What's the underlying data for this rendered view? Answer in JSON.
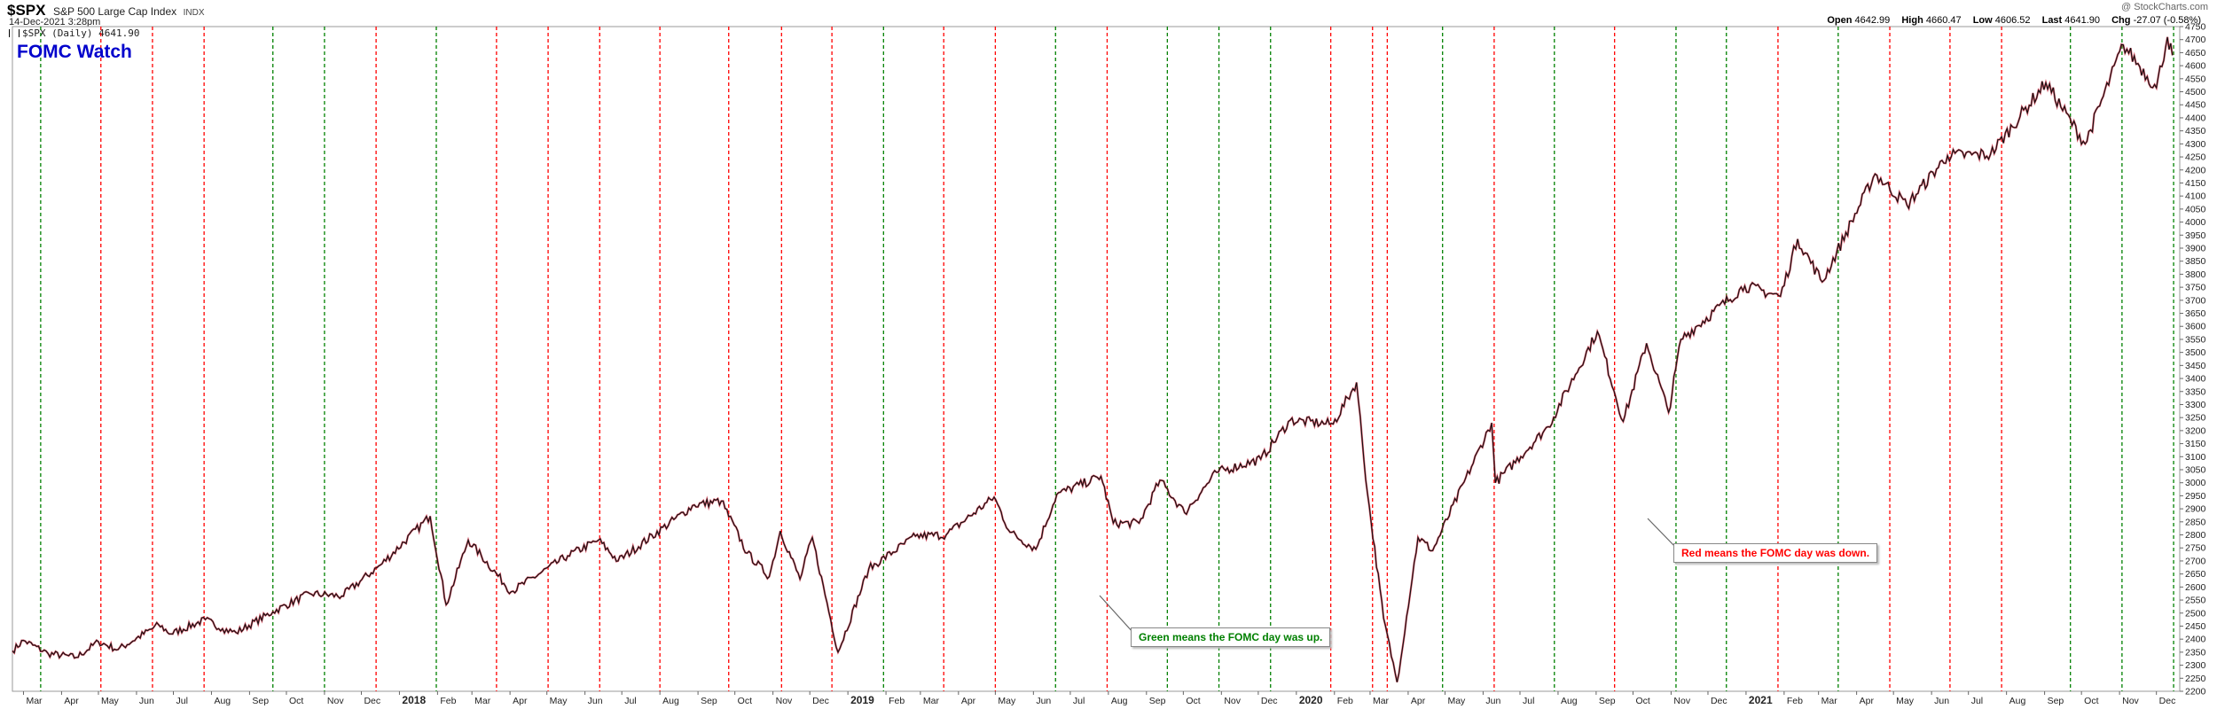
{
  "header": {
    "symbol": "$SPX",
    "name": "S&P 500 Large Cap Index",
    "exchange": "INDX",
    "date": "14-Dec-2021 3:28pm",
    "series_label": "$SPX (Daily) 4641.90",
    "watermark": "@ StockCharts.com",
    "ohlc": {
      "open_label": "Open",
      "open": "4642.99",
      "high_label": "High",
      "high": "4660.47",
      "low_label": "Low",
      "low": "4606.52",
      "last_label": "Last",
      "last": "4641.90",
      "chg_label": "Chg",
      "chg": "-27.07 (-0.58%)"
    }
  },
  "chart_title": "FOMC Watch",
  "annotations": {
    "green_note": "Green means the FOMC day was up.",
    "red_note": "Red means the FOMC day was down."
  },
  "colors": {
    "up": "#008000",
    "down": "#ff0000",
    "title": "#0000cc",
    "price": "#111111"
  },
  "chart_data": {
    "type": "line",
    "ylim": [
      2200,
      4750
    ],
    "y_ticks": [
      2200,
      2250,
      2300,
      2350,
      2400,
      2450,
      2500,
      2550,
      2600,
      2650,
      2700,
      2750,
      2800,
      2850,
      2900,
      2950,
      3000,
      3050,
      3100,
      3150,
      3200,
      3250,
      3300,
      3350,
      3400,
      3450,
      3500,
      3550,
      3600,
      3650,
      3700,
      3750,
      3800,
      3850,
      3900,
      3950,
      4000,
      4050,
      4100,
      4150,
      4200,
      4250,
      4300,
      4350,
      4400,
      4450,
      4500,
      4550,
      4600,
      4650,
      4700,
      4750
    ],
    "xlim": [
      "2017-02-20",
      "2021-12-20"
    ],
    "x_ticks": [
      {
        "label": "Mar",
        "date": "2017-03-01",
        "bold": false
      },
      {
        "label": "Apr",
        "date": "2017-04-01",
        "bold": false
      },
      {
        "label": "May",
        "date": "2017-05-01",
        "bold": false
      },
      {
        "label": "Jun",
        "date": "2017-06-01",
        "bold": false
      },
      {
        "label": "Jul",
        "date": "2017-07-01",
        "bold": false
      },
      {
        "label": "Aug",
        "date": "2017-08-01",
        "bold": false
      },
      {
        "label": "Sep",
        "date": "2017-09-01",
        "bold": false
      },
      {
        "label": "Oct",
        "date": "2017-10-01",
        "bold": false
      },
      {
        "label": "Nov",
        "date": "2017-11-01",
        "bold": false
      },
      {
        "label": "Dec",
        "date": "2017-12-01",
        "bold": false
      },
      {
        "label": "2018",
        "date": "2018-01-01",
        "bold": true
      },
      {
        "label": "Feb",
        "date": "2018-02-01",
        "bold": false
      },
      {
        "label": "Mar",
        "date": "2018-03-01",
        "bold": false
      },
      {
        "label": "Apr",
        "date": "2018-04-01",
        "bold": false
      },
      {
        "label": "May",
        "date": "2018-05-01",
        "bold": false
      },
      {
        "label": "Jun",
        "date": "2018-06-01",
        "bold": false
      },
      {
        "label": "Jul",
        "date": "2018-07-01",
        "bold": false
      },
      {
        "label": "Aug",
        "date": "2018-08-01",
        "bold": false
      },
      {
        "label": "Sep",
        "date": "2018-09-01",
        "bold": false
      },
      {
        "label": "Oct",
        "date": "2018-10-01",
        "bold": false
      },
      {
        "label": "Nov",
        "date": "2018-11-01",
        "bold": false
      },
      {
        "label": "Dec",
        "date": "2018-12-01",
        "bold": false
      },
      {
        "label": "2019",
        "date": "2019-01-01",
        "bold": true
      },
      {
        "label": "Feb",
        "date": "2019-02-01",
        "bold": false
      },
      {
        "label": "Mar",
        "date": "2019-03-01",
        "bold": false
      },
      {
        "label": "Apr",
        "date": "2019-04-01",
        "bold": false
      },
      {
        "label": "May",
        "date": "2019-05-01",
        "bold": false
      },
      {
        "label": "Jun",
        "date": "2019-06-01",
        "bold": false
      },
      {
        "label": "Jul",
        "date": "2019-07-01",
        "bold": false
      },
      {
        "label": "Aug",
        "date": "2019-08-01",
        "bold": false
      },
      {
        "label": "Sep",
        "date": "2019-09-01",
        "bold": false
      },
      {
        "label": "Oct",
        "date": "2019-10-01",
        "bold": false
      },
      {
        "label": "Nov",
        "date": "2019-11-01",
        "bold": false
      },
      {
        "label": "Dec",
        "date": "2019-12-01",
        "bold": false
      },
      {
        "label": "2020",
        "date": "2020-01-01",
        "bold": true
      },
      {
        "label": "Feb",
        "date": "2020-02-01",
        "bold": false
      },
      {
        "label": "Mar",
        "date": "2020-03-01",
        "bold": false
      },
      {
        "label": "Apr",
        "date": "2020-04-01",
        "bold": false
      },
      {
        "label": "May",
        "date": "2020-05-01",
        "bold": false
      },
      {
        "label": "Jun",
        "date": "2020-06-01",
        "bold": false
      },
      {
        "label": "Jul",
        "date": "2020-07-01",
        "bold": false
      },
      {
        "label": "Aug",
        "date": "2020-08-01",
        "bold": false
      },
      {
        "label": "Sep",
        "date": "2020-09-01",
        "bold": false
      },
      {
        "label": "Oct",
        "date": "2020-10-01",
        "bold": false
      },
      {
        "label": "Nov",
        "date": "2020-11-01",
        "bold": false
      },
      {
        "label": "Dec",
        "date": "2020-12-01",
        "bold": false
      },
      {
        "label": "2021",
        "date": "2021-01-01",
        "bold": true
      },
      {
        "label": "Feb",
        "date": "2021-02-01",
        "bold": false
      },
      {
        "label": "Mar",
        "date": "2021-03-01",
        "bold": false
      },
      {
        "label": "Apr",
        "date": "2021-04-01",
        "bold": false
      },
      {
        "label": "May",
        "date": "2021-05-01",
        "bold": false
      },
      {
        "label": "Jun",
        "date": "2021-06-01",
        "bold": false
      },
      {
        "label": "Jul",
        "date": "2021-07-01",
        "bold": false
      },
      {
        "label": "Aug",
        "date": "2021-08-01",
        "bold": false
      },
      {
        "label": "Sep",
        "date": "2021-09-01",
        "bold": false
      },
      {
        "label": "Oct",
        "date": "2021-10-01",
        "bold": false
      },
      {
        "label": "Nov",
        "date": "2021-11-01",
        "bold": false
      },
      {
        "label": "Dec",
        "date": "2021-12-01",
        "bold": false
      }
    ],
    "fomc_days": [
      {
        "date": "2017-03-15",
        "result": "up"
      },
      {
        "date": "2017-05-03",
        "result": "down"
      },
      {
        "date": "2017-06-14",
        "result": "down"
      },
      {
        "date": "2017-07-26",
        "result": "down"
      },
      {
        "date": "2017-09-20",
        "result": "up"
      },
      {
        "date": "2017-11-01",
        "result": "up"
      },
      {
        "date": "2017-12-13",
        "result": "down"
      },
      {
        "date": "2018-01-31",
        "result": "up"
      },
      {
        "date": "2018-03-21",
        "result": "down"
      },
      {
        "date": "2018-05-02",
        "result": "down"
      },
      {
        "date": "2018-06-13",
        "result": "down"
      },
      {
        "date": "2018-08-01",
        "result": "down"
      },
      {
        "date": "2018-09-26",
        "result": "down"
      },
      {
        "date": "2018-11-08",
        "result": "down"
      },
      {
        "date": "2018-12-19",
        "result": "down"
      },
      {
        "date": "2019-01-30",
        "result": "up"
      },
      {
        "date": "2019-03-20",
        "result": "down"
      },
      {
        "date": "2019-05-01",
        "result": "down"
      },
      {
        "date": "2019-06-19",
        "result": "up"
      },
      {
        "date": "2019-07-31",
        "result": "down"
      },
      {
        "date": "2019-09-18",
        "result": "up"
      },
      {
        "date": "2019-10-30",
        "result": "up"
      },
      {
        "date": "2019-12-11",
        "result": "up"
      },
      {
        "date": "2020-01-29",
        "result": "down"
      },
      {
        "date": "2020-03-03",
        "result": "down"
      },
      {
        "date": "2020-03-15",
        "result": "down"
      },
      {
        "date": "2020-04-29",
        "result": "up"
      },
      {
        "date": "2020-06-10",
        "result": "down"
      },
      {
        "date": "2020-07-29",
        "result": "up"
      },
      {
        "date": "2020-09-16",
        "result": "down"
      },
      {
        "date": "2020-11-05",
        "result": "up"
      },
      {
        "date": "2020-12-16",
        "result": "up"
      },
      {
        "date": "2021-01-27",
        "result": "down"
      },
      {
        "date": "2021-03-17",
        "result": "up"
      },
      {
        "date": "2021-04-28",
        "result": "down"
      },
      {
        "date": "2021-06-16",
        "result": "down"
      },
      {
        "date": "2021-07-28",
        "result": "down"
      },
      {
        "date": "2021-09-22",
        "result": "up"
      },
      {
        "date": "2021-11-03",
        "result": "up"
      },
      {
        "date": "2021-12-15",
        "result": "up"
      }
    ],
    "price_series": [
      [
        "2017-02-20",
        2355
      ],
      [
        "2017-03-01",
        2395
      ],
      [
        "2017-03-21",
        2345
      ],
      [
        "2017-04-13",
        2330
      ],
      [
        "2017-05-01",
        2390
      ],
      [
        "2017-05-17",
        2360
      ],
      [
        "2017-06-19",
        2455
      ],
      [
        "2017-06-29",
        2420
      ],
      [
        "2017-07-27",
        2475
      ],
      [
        "2017-08-10",
        2440
      ],
      [
        "2017-08-21",
        2425
      ],
      [
        "2017-09-20",
        2505
      ],
      [
        "2017-10-20",
        2575
      ],
      [
        "2017-11-15",
        2565
      ],
      [
        "2017-12-18",
        2690
      ],
      [
        "2018-01-26",
        2872
      ],
      [
        "2018-02-08",
        2532
      ],
      [
        "2018-02-26",
        2780
      ],
      [
        "2018-04-02",
        2582
      ],
      [
        "2018-05-18",
        2720
      ],
      [
        "2018-06-12",
        2780
      ],
      [
        "2018-06-28",
        2700
      ],
      [
        "2018-08-29",
        2915
      ],
      [
        "2018-09-20",
        2930
      ],
      [
        "2018-10-11",
        2730
      ],
      [
        "2018-10-29",
        2640
      ],
      [
        "2018-11-07",
        2815
      ],
      [
        "2018-11-23",
        2630
      ],
      [
        "2018-12-03",
        2790
      ],
      [
        "2018-12-24",
        2350
      ],
      [
        "2019-01-18",
        2670
      ],
      [
        "2019-02-25",
        2795
      ],
      [
        "2019-03-22",
        2800
      ],
      [
        "2019-04-30",
        2945
      ],
      [
        "2019-05-13",
        2810
      ],
      [
        "2019-06-03",
        2745
      ],
      [
        "2019-06-20",
        2955
      ],
      [
        "2019-07-26",
        3025
      ],
      [
        "2019-08-05",
        2845
      ],
      [
        "2019-08-26",
        2845
      ],
      [
        "2019-09-12",
        3010
      ],
      [
        "2019-10-02",
        2885
      ],
      [
        "2019-10-28",
        3040
      ],
      [
        "2019-12-03",
        3090
      ],
      [
        "2019-12-27",
        3240
      ],
      [
        "2020-01-31",
        3225
      ],
      [
        "2020-02-19",
        3385
      ],
      [
        "2020-02-28",
        2955
      ],
      [
        "2020-03-12",
        2480
      ],
      [
        "2020-03-23",
        2235
      ],
      [
        "2020-04-09",
        2790
      ],
      [
        "2020-04-21",
        2740
      ],
      [
        "2020-06-08",
        3230
      ],
      [
        "2020-06-11",
        3000
      ],
      [
        "2020-07-24",
        3215
      ],
      [
        "2020-09-02",
        3580
      ],
      [
        "2020-09-23",
        3235
      ],
      [
        "2020-10-12",
        3535
      ],
      [
        "2020-10-30",
        3270
      ],
      [
        "2020-11-09",
        3550
      ],
      [
        "2020-12-31",
        3755
      ],
      [
        "2021-01-29",
        3715
      ],
      [
        "2021-02-12",
        3935
      ],
      [
        "2021-03-04",
        3770
      ],
      [
        "2021-04-16",
        4185
      ],
      [
        "2021-05-12",
        4065
      ],
      [
        "2021-06-14",
        4255
      ],
      [
        "2021-07-19",
        4260
      ],
      [
        "2021-09-02",
        4535
      ],
      [
        "2021-10-04",
        4300
      ],
      [
        "2021-11-04",
        4680
      ],
      [
        "2021-12-01",
        4515
      ],
      [
        "2021-12-10",
        4710
      ],
      [
        "2021-12-14",
        4640
      ]
    ]
  }
}
